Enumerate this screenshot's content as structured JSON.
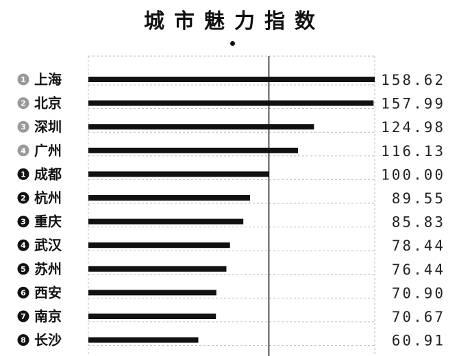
{
  "title": "城市魅力指数",
  "chart_data": {
    "type": "bar",
    "orientation": "horizontal",
    "reference_value": 100.0,
    "xlim": [
      0,
      158.62
    ],
    "grid": true,
    "rows": [
      {
        "group": "top",
        "rank": "1",
        "city": "上海",
        "value": 158.62,
        "label": "158.62"
      },
      {
        "group": "top",
        "rank": "2",
        "city": "北京",
        "value": 157.99,
        "label": "157.99"
      },
      {
        "group": "top",
        "rank": "3",
        "city": "深圳",
        "value": 124.98,
        "label": "124.98"
      },
      {
        "group": "top",
        "rank": "4",
        "city": "广州",
        "value": 116.13,
        "label": "116.13"
      },
      {
        "group": "new",
        "rank": "1",
        "city": "成都",
        "value": 100.0,
        "label": "100.00"
      },
      {
        "group": "new",
        "rank": "2",
        "city": "杭州",
        "value": 89.55,
        "label": "89.55"
      },
      {
        "group": "new",
        "rank": "3",
        "city": "重庆",
        "value": 85.83,
        "label": "85.83"
      },
      {
        "group": "new",
        "rank": "4",
        "city": "武汉",
        "value": 78.44,
        "label": "78.44"
      },
      {
        "group": "new",
        "rank": "5",
        "city": "苏州",
        "value": 76.44,
        "label": "76.44"
      },
      {
        "group": "new",
        "rank": "6",
        "city": "西安",
        "value": 70.9,
        "label": "70.90"
      },
      {
        "group": "new",
        "rank": "7",
        "city": "南京",
        "value": 70.67,
        "label": "70.67"
      },
      {
        "group": "new",
        "rank": "8",
        "city": "长沙",
        "value": 60.91,
        "label": "60.91"
      }
    ]
  },
  "colors": {
    "bar": "#111111",
    "top_badge": "#9a9a9a",
    "new_badge": "#111111",
    "grid": "#bbbbbb",
    "reference_line": "#111111"
  }
}
